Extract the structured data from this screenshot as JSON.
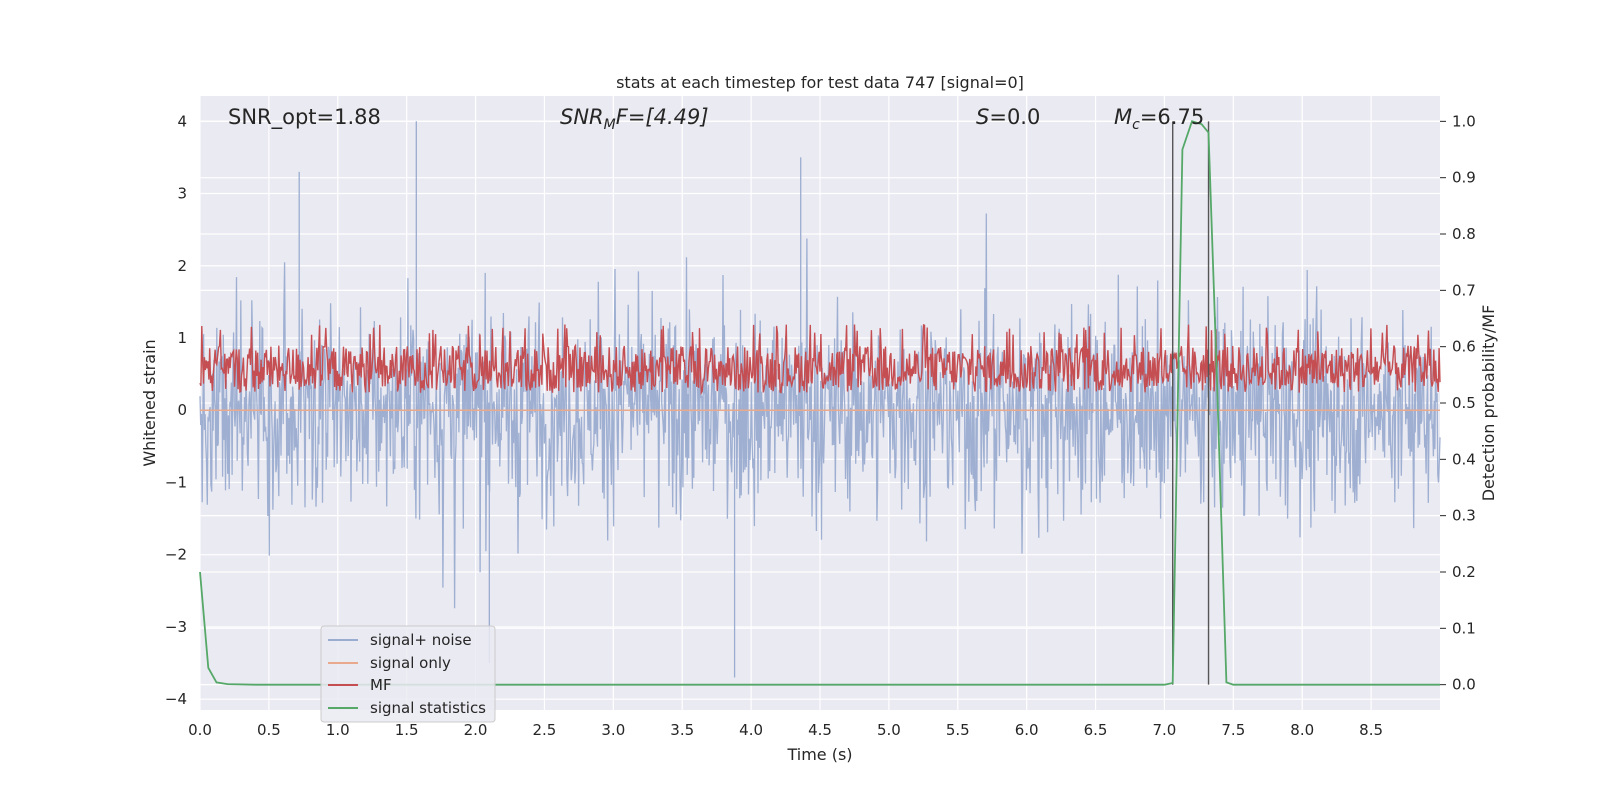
{
  "chart_data": {
    "type": "line",
    "title": "stats at each timestep for test data 747 [signal=0]",
    "xlabel": "Time (s)",
    "ylabel": "Whitened strain",
    "y2label": "Detection probability/MF",
    "xlim": [
      0.0,
      9.0
    ],
    "ylim": [
      -4.15,
      4.35
    ],
    "y2lim": [
      -0.045,
      1.045
    ],
    "x_ticks": [
      0.0,
      0.5,
      1.0,
      1.5,
      2.0,
      2.5,
      3.0,
      3.5,
      4.0,
      4.5,
      5.0,
      5.5,
      6.0,
      6.5,
      7.0,
      7.5,
      8.0,
      8.5
    ],
    "x_tick_labels": [
      "0.0",
      "0.5",
      "1.0",
      "1.5",
      "2.0",
      "2.5",
      "3.0",
      "3.5",
      "4.0",
      "4.5",
      "5.0",
      "5.5",
      "6.0",
      "6.5",
      "7.0",
      "7.5",
      "8.0",
      "8.5"
    ],
    "y_ticks": [
      4,
      3,
      2,
      1,
      0,
      -1,
      -2,
      -3,
      -4
    ],
    "y_tick_labels": [
      "4",
      "3",
      "2",
      "1",
      "0",
      "−1",
      "−2",
      "−3",
      "−4"
    ],
    "y2_ticks": [
      1.0,
      0.9,
      0.8,
      0.7,
      0.6,
      0.5,
      0.4,
      0.3,
      0.2,
      0.1,
      0.0
    ],
    "y2_tick_labels": [
      "1.0",
      "0.9",
      "0.8",
      "0.7",
      "0.6",
      "0.5",
      "0.4",
      "0.3",
      "0.2",
      "0.1",
      "0.0"
    ],
    "grid": true,
    "legend_position": "lower-left",
    "annotations": {
      "snr_opt": "SNR_opt=1.88",
      "snr_mf_main": "SNR",
      "snr_mf_sub": "M",
      "snr_mf_rest": "F=[4.49]",
      "s_main": "S",
      "s_rest": "=0.0",
      "mc_main": "M",
      "mc_sub": "c",
      "mc_rest": "=6.75"
    },
    "vertical_markers": [
      7.06,
      7.32
    ],
    "series": [
      {
        "name": "signal+ noise",
        "color": "#9aacd0",
        "description": "noise-like whitened strain, amplitude about ±2.5 with spikes to 4.0 and -3.7",
        "envelope": {
          "upper_typical": 2.3,
          "lower_typical": -2.3,
          "max": 4.0,
          "min": -3.7
        }
      },
      {
        "name": "signal only",
        "color": "#e8a98c",
        "values_constant": 0.0
      },
      {
        "name": "MF",
        "color": "#c44e52",
        "description": "matched filter output on secondary axis, fluctuating roughly 0.5 to 0.62",
        "range": [
          0.5,
          0.62
        ]
      },
      {
        "name": "signal statistics",
        "color": "#55a868",
        "x": [
          0.0,
          0.06,
          0.12,
          0.2,
          0.4,
          1.0,
          2.0,
          3.0,
          4.0,
          5.0,
          6.0,
          7.0,
          7.06,
          7.13,
          7.2,
          7.27,
          7.32,
          7.38,
          7.45,
          7.5,
          8.0,
          8.5,
          9.0
        ],
        "y2": [
          0.2,
          0.03,
          0.004,
          0.001,
          0.0,
          0.0,
          0.0,
          0.0,
          0.0,
          0.0,
          0.0,
          0.0,
          0.003,
          0.95,
          1.0,
          0.995,
          0.98,
          0.55,
          0.004,
          0.0,
          0.0,
          0.0,
          0.0
        ]
      }
    ]
  }
}
